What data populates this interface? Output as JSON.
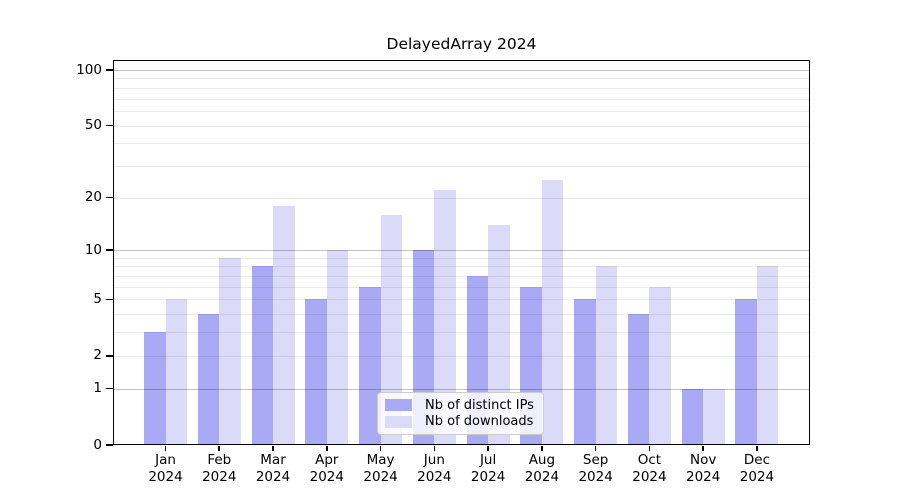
{
  "title": "DelayedArray 2024",
  "background": "#ffffff",
  "chart_data": {
    "type": "bar",
    "title": "DelayedArray 2024",
    "categories": [
      "Jan 2024",
      "Feb 2024",
      "Mar 2024",
      "Apr 2024",
      "May 2024",
      "Jun 2024",
      "Jul 2024",
      "Aug 2024",
      "Sep 2024",
      "Oct 2024",
      "Nov 2024",
      "Dec 2024"
    ],
    "series": [
      {
        "name": "Nb of distinct IPs",
        "color": "#a9a9f5",
        "values": [
          3,
          4,
          8,
          5,
          6,
          10,
          7,
          6,
          5,
          4,
          1,
          5
        ]
      },
      {
        "name": "Nb of downloads",
        "color": "#dbdbf9",
        "values": [
          5,
          9,
          18,
          10,
          16,
          22,
          14,
          25,
          8,
          6,
          1,
          8
        ]
      }
    ],
    "xlabel": "",
    "ylabel": "",
    "yscale": "log1p",
    "ylim": [
      0,
      113
    ],
    "yticks": [
      0,
      1,
      2,
      5,
      10,
      20,
      50,
      100
    ],
    "major_gridlines": [
      1,
      10,
      100
    ],
    "minor_gridlines": [
      2,
      3,
      4,
      5,
      6,
      7,
      8,
      9,
      20,
      30,
      40,
      50,
      60,
      70,
      80,
      90
    ],
    "grid": true,
    "legend_position": "lower center",
    "legend_entries": [
      "Nb of distinct IPs",
      "Nb of downloads"
    ]
  }
}
